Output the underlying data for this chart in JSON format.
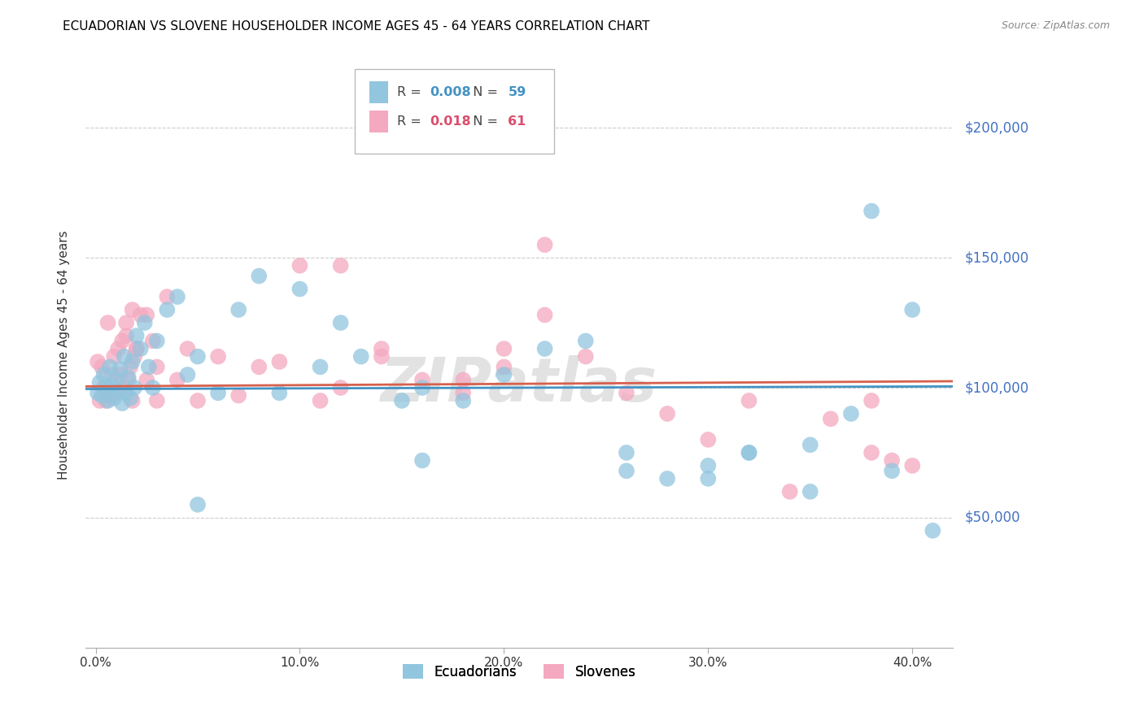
{
  "title": "ECUADORIAN VS SLOVENE HOUSEHOLDER INCOME AGES 45 - 64 YEARS CORRELATION CHART",
  "source": "Source: ZipAtlas.com",
  "ylabel": "Householder Income Ages 45 - 64 years",
  "xlabel_ticks": [
    "0.0%",
    "10.0%",
    "20.0%",
    "30.0%",
    "40.0%"
  ],
  "xlabel_vals": [
    0.0,
    0.1,
    0.2,
    0.3,
    0.4
  ],
  "ytick_labels": [
    "$50,000",
    "$100,000",
    "$150,000",
    "$200,000"
  ],
  "ytick_vals": [
    50000,
    100000,
    150000,
    200000
  ],
  "ylim": [
    0,
    225000
  ],
  "xlim": [
    -0.005,
    0.42
  ],
  "blue_color": "#92c5de",
  "pink_color": "#f4a9c0",
  "blue_line_color": "#4393c3",
  "pink_line_color": "#d6604d",
  "legend_blue_r": "0.008",
  "legend_blue_n": "59",
  "legend_pink_r": "0.018",
  "legend_pink_n": "61",
  "watermark": "ZIPatlas",
  "ecuadorians_x": [
    0.001,
    0.002,
    0.003,
    0.004,
    0.005,
    0.006,
    0.007,
    0.008,
    0.009,
    0.01,
    0.011,
    0.012,
    0.013,
    0.014,
    0.015,
    0.016,
    0.017,
    0.018,
    0.019,
    0.02,
    0.022,
    0.024,
    0.026,
    0.028,
    0.03,
    0.035,
    0.04,
    0.045,
    0.05,
    0.06,
    0.07,
    0.08,
    0.09,
    0.1,
    0.11,
    0.12,
    0.13,
    0.15,
    0.16,
    0.18,
    0.2,
    0.22,
    0.24,
    0.26,
    0.28,
    0.3,
    0.32,
    0.35,
    0.38,
    0.4,
    0.16,
    0.26,
    0.3,
    0.32,
    0.35,
    0.37,
    0.39,
    0.41,
    0.05
  ],
  "ecuadorians_y": [
    98000,
    102000,
    97000,
    105000,
    100000,
    95000,
    108000,
    101000,
    96000,
    103000,
    99000,
    107000,
    94000,
    112000,
    98000,
    104000,
    96000,
    110000,
    100000,
    120000,
    115000,
    125000,
    108000,
    100000,
    118000,
    130000,
    135000,
    105000,
    112000,
    98000,
    130000,
    143000,
    98000,
    138000,
    108000,
    125000,
    112000,
    95000,
    100000,
    95000,
    105000,
    115000,
    118000,
    75000,
    65000,
    65000,
    75000,
    78000,
    168000,
    130000,
    72000,
    68000,
    70000,
    75000,
    60000,
    90000,
    68000,
    45000,
    55000
  ],
  "slovenes_x": [
    0.001,
    0.002,
    0.003,
    0.004,
    0.005,
    0.006,
    0.007,
    0.008,
    0.009,
    0.01,
    0.011,
    0.012,
    0.013,
    0.014,
    0.015,
    0.016,
    0.017,
    0.018,
    0.019,
    0.02,
    0.022,
    0.025,
    0.028,
    0.03,
    0.035,
    0.04,
    0.045,
    0.05,
    0.06,
    0.07,
    0.08,
    0.09,
    0.1,
    0.11,
    0.12,
    0.14,
    0.16,
    0.18,
    0.2,
    0.22,
    0.24,
    0.26,
    0.28,
    0.3,
    0.32,
    0.34,
    0.36,
    0.38,
    0.4,
    0.015,
    0.018,
    0.02,
    0.025,
    0.03,
    0.12,
    0.14,
    0.18,
    0.2,
    0.22,
    0.38,
    0.39
  ],
  "slovenes_y": [
    110000,
    95000,
    108000,
    100000,
    95000,
    125000,
    97000,
    105000,
    112000,
    98000,
    115000,
    105000,
    118000,
    100000,
    120000,
    103000,
    108000,
    95000,
    112000,
    115000,
    128000,
    103000,
    118000,
    108000,
    135000,
    103000,
    115000,
    95000,
    112000,
    97000,
    108000,
    110000,
    147000,
    95000,
    100000,
    115000,
    103000,
    98000,
    108000,
    155000,
    112000,
    98000,
    90000,
    80000,
    95000,
    60000,
    88000,
    95000,
    70000,
    125000,
    130000,
    115000,
    128000,
    95000,
    147000,
    112000,
    103000,
    115000,
    128000,
    75000,
    72000
  ]
}
